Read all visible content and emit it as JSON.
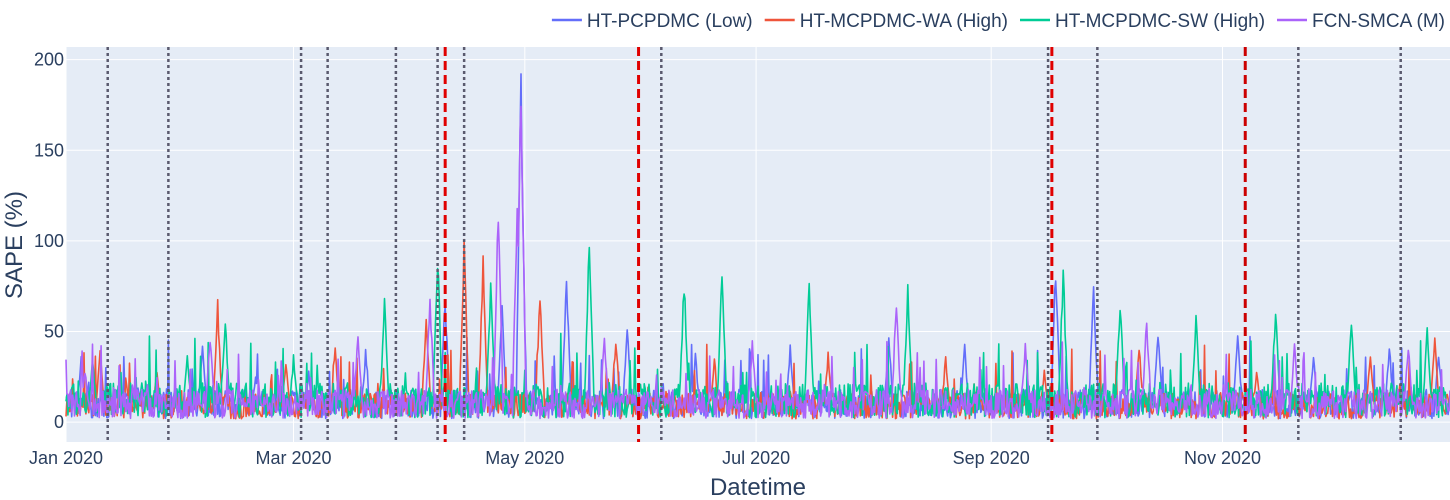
{
  "chart_data": {
    "type": "line",
    "title": "",
    "xlabel": "Datetime",
    "ylabel": "SAPE (%)",
    "x_range": [
      "2020-01-01",
      "2020-12-31"
    ],
    "ylim": [
      -11,
      207
    ],
    "grid": true,
    "legend_position": "top-right",
    "x_ticks": [
      {
        "date": "2020-01-01",
        "label": "Jan 2020"
      },
      {
        "date": "2020-03-01",
        "label": "Mar 2020"
      },
      {
        "date": "2020-05-01",
        "label": "May 2020"
      },
      {
        "date": "2020-07-01",
        "label": "Jul 2020"
      },
      {
        "date": "2020-09-01",
        "label": "Sep 2020"
      },
      {
        "date": "2020-11-01",
        "label": "Nov 2020"
      }
    ],
    "y_ticks": [
      0,
      50,
      100,
      150,
      200
    ],
    "series": [
      {
        "name": "HT-PCPDMC (Low)",
        "color": "#636efa",
        "points": [
          [
            "2020-01-05",
            38
          ],
          [
            "2020-01-20",
            22
          ],
          [
            "2020-02-06",
            45
          ],
          [
            "2020-02-20",
            28
          ],
          [
            "2020-03-05",
            30
          ],
          [
            "2020-03-20",
            40
          ],
          [
            "2020-04-10",
            72
          ],
          [
            "2020-04-25",
            65
          ],
          [
            "2020-04-30",
            197
          ],
          [
            "2020-05-12",
            86
          ],
          [
            "2020-05-28",
            55
          ],
          [
            "2020-06-15",
            40
          ],
          [
            "2020-07-10",
            45
          ],
          [
            "2020-08-05",
            50
          ],
          [
            "2020-08-25",
            45
          ],
          [
            "2020-09-18",
            90
          ],
          [
            "2020-09-28",
            80
          ],
          [
            "2020-10-15",
            55
          ],
          [
            "2020-11-05",
            50
          ],
          [
            "2020-11-25",
            40
          ],
          [
            "2020-12-15",
            45
          ],
          [
            "2020-12-28",
            40
          ]
        ]
      },
      {
        "name": "HT-MCPDMC-WA (High)",
        "color": "#ef553b",
        "points": [
          [
            "2020-01-10",
            42
          ],
          [
            "2020-01-25",
            30
          ],
          [
            "2020-02-10",
            68
          ],
          [
            "2020-02-28",
            35
          ],
          [
            "2020-03-12",
            42
          ],
          [
            "2020-04-05",
            60
          ],
          [
            "2020-04-15",
            104
          ],
          [
            "2020-04-20",
            92
          ],
          [
            "2020-05-05",
            72
          ],
          [
            "2020-05-25",
            50
          ],
          [
            "2020-06-20",
            35
          ],
          [
            "2020-07-20",
            40
          ],
          [
            "2020-08-20",
            38
          ],
          [
            "2020-09-15",
            30
          ],
          [
            "2020-10-10",
            45
          ],
          [
            "2020-11-10",
            30
          ],
          [
            "2020-12-10",
            40
          ],
          [
            "2020-12-27",
            49
          ]
        ]
      },
      {
        "name": "HT-MCPDMC-SW (High)",
        "color": "#00cc96",
        "points": [
          [
            "2020-01-08",
            35
          ],
          [
            "2020-02-02",
            40
          ],
          [
            "2020-02-12",
            60
          ],
          [
            "2020-03-01",
            38
          ],
          [
            "2020-03-25",
            70
          ],
          [
            "2020-04-08",
            99
          ],
          [
            "2020-04-22",
            80
          ],
          [
            "2020-05-18",
            104
          ],
          [
            "2020-06-12",
            83
          ],
          [
            "2020-06-22",
            92
          ],
          [
            "2020-07-15",
            82
          ],
          [
            "2020-08-10",
            78
          ],
          [
            "2020-09-20",
            88
          ],
          [
            "2020-10-05",
            72
          ],
          [
            "2020-10-25",
            62
          ],
          [
            "2020-11-15",
            67
          ],
          [
            "2020-12-05",
            61
          ],
          [
            "2020-12-25",
            55
          ]
        ]
      },
      {
        "name": "FCN-SMCA (M)",
        "color": "#ab63fa",
        "points": [
          [
            "2020-01-06",
            30
          ],
          [
            "2020-02-08",
            50
          ],
          [
            "2020-03-18",
            52
          ],
          [
            "2020-04-06",
            72
          ],
          [
            "2020-04-24",
            124
          ],
          [
            "2020-04-29",
            132
          ],
          [
            "2020-04-30",
            196
          ],
          [
            "2020-05-22",
            50
          ],
          [
            "2020-06-30",
            45
          ],
          [
            "2020-08-07",
            73
          ],
          [
            "2020-09-10",
            45
          ],
          [
            "2020-10-12",
            60
          ],
          [
            "2020-11-20",
            45
          ],
          [
            "2020-12-20",
            45
          ]
        ]
      }
    ],
    "vertical_markers": [
      {
        "date": "2020-01-12",
        "style": "dotted",
        "color": "#5a5a6e"
      },
      {
        "date": "2020-01-28",
        "style": "dotted",
        "color": "#5a5a6e"
      },
      {
        "date": "2020-03-03",
        "style": "dotted",
        "color": "#5a5a6e"
      },
      {
        "date": "2020-03-10",
        "style": "dotted",
        "color": "#5a5a6e"
      },
      {
        "date": "2020-03-28",
        "style": "dotted",
        "color": "#5a5a6e"
      },
      {
        "date": "2020-04-08",
        "style": "dotted",
        "color": "#5a5a6e"
      },
      {
        "date": "2020-04-10",
        "style": "dashed",
        "color": "#e00000"
      },
      {
        "date": "2020-04-15",
        "style": "dotted",
        "color": "#5a5a6e"
      },
      {
        "date": "2020-05-31",
        "style": "dashed",
        "color": "#e00000"
      },
      {
        "date": "2020-06-06",
        "style": "dotted",
        "color": "#5a5a6e"
      },
      {
        "date": "2020-09-16",
        "style": "dotted",
        "color": "#5a5a6e"
      },
      {
        "date": "2020-09-17",
        "style": "dashed",
        "color": "#e00000"
      },
      {
        "date": "2020-09-29",
        "style": "dotted",
        "color": "#5a5a6e"
      },
      {
        "date": "2020-11-07",
        "style": "dashed",
        "color": "#cc0000"
      },
      {
        "date": "2020-11-21",
        "style": "dotted",
        "color": "#5a5a6e"
      },
      {
        "date": "2020-12-18",
        "style": "dotted",
        "color": "#5a5a6e"
      }
    ]
  }
}
